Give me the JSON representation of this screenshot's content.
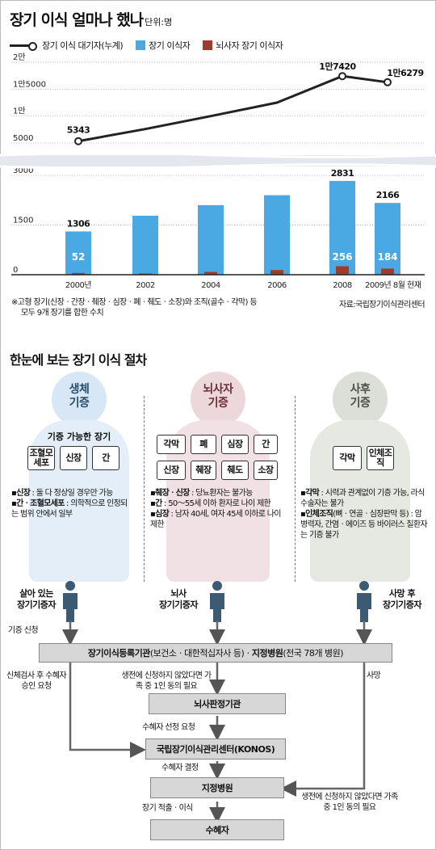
{
  "header": {
    "title": "장기 이식 얼마나 했나",
    "unit": "단위:명"
  },
  "legend": {
    "waiting": "장기 이식 대기자(누계)",
    "recipients": "장기 이식자",
    "braindead": "뇌사자 장기 이식자"
  },
  "colors": {
    "recipients": "#4aa8e2",
    "braindead": "#a23a2e",
    "line": "#222222"
  },
  "chart_data": {
    "type": "bar+line",
    "categories": [
      "2000년",
      "2002",
      "2004",
      "2006",
      "2008",
      "2009년 8월 현재"
    ],
    "y_ticks": [
      "2만",
      "1만5000",
      "1만",
      "5000",
      "3000",
      "1500",
      "0"
    ],
    "axis_note": "broken axis between 5000 and 3000",
    "series": [
      {
        "name": "장기 이식 대기자(누계)",
        "type": "line",
        "values": [
          5343,
          7600,
          10000,
          12500,
          17420,
          16279
        ]
      },
      {
        "name": "장기 이식자",
        "type": "bar",
        "values": [
          1306,
          1780,
          2100,
          2400,
          2831,
          2166
        ]
      },
      {
        "name": "뇌사자 장기 이식자",
        "type": "bar",
        "values": [
          52,
          36,
          86,
          141,
          256,
          184
        ]
      }
    ],
    "data_labels": {
      "waiting": {
        "0": "5343",
        "4": "1만7420",
        "5": "1만6279"
      },
      "recipients": {
        "0": "1306",
        "4": "2831",
        "5": "2166"
      },
      "braindead": {
        "0": "52",
        "4": "256",
        "5": "184"
      }
    },
    "grid": true
  },
  "notes": {
    "footnote1": "※고형 장기(신장ㆍ간장ㆍ췌장ㆍ심장ㆍ폐ㆍ췌도ㆍ소장)와 조직(골수ㆍ각막) 등",
    "footnote2": "모두 9개 장기를 합한 수치",
    "source": "자료:국립장기이식관리센터"
  },
  "procedure": {
    "title": "한눈에 보는 장기 이식 절차",
    "living": {
      "label1": "생체",
      "label2": "기증",
      "box_title": "기증 가능한 장기",
      "organs": [
        "조혈모세포",
        "신장",
        "간"
      ],
      "note1_key": "신장",
      "note1": " : 둘 다 정상일 경우만 가능",
      "note2_key": "간ㆍ조혈모세포",
      "note2": " : 의학적으로 인정되는 범위 안에서 일부",
      "donor": "살아 있는",
      "donor2": "장기기증자"
    },
    "braindead": {
      "label1": "뇌사자",
      "label2": "기증",
      "organs": [
        "각막",
        "폐",
        "심장",
        "간",
        "신장",
        "췌장",
        "췌도",
        "소장"
      ],
      "note1_key": "췌장ㆍ신장",
      "note1": " : 당뇨환자는 불가능",
      "note2_key": "간",
      "note2": " : 50～55세 이하 환자로 나이 제한",
      "note3_key": "심장",
      "note3": " : 남자 40세, 여자 45세 이하로 나이 제한",
      "donor": "뇌사",
      "donor2": "장기기증자"
    },
    "deceased": {
      "label1": "사후",
      "label2": "기증",
      "organs": [
        "각막",
        "인체조직"
      ],
      "note1_key": "각막",
      "note1": " : 시력과 관계없이 기증 가능, 라식 수술자는 불가",
      "note2_key": "인체조직",
      "note2": "(뼈ㆍ연골ㆍ심장판막 등) : 암병력자, 간염ㆍ에이즈 등 바이러스 질환자는 기증 불가",
      "donor": "사망 후",
      "donor2": "장기기증자"
    },
    "flow": {
      "apply": "기증 신청",
      "reg_bold1": "장기이식등록기관",
      "reg_mid": "(보건소ㆍ대한적십자사 등)ㆍ",
      "reg_bold2": "지정병원",
      "reg_end": "(전국 78개 병원)",
      "autopsy": "신체검사 후 수혜자 승인 요청",
      "family1": "생전에 신청하지 않았다면 가족 중 1인 동의 필요",
      "death": "사망",
      "judge": "뇌사판정기관",
      "select": "수혜자 선정 요청",
      "konos": "국립장기이식관리센터(KONOS)",
      "decide": "수혜자 결정",
      "hospital": "지정병원",
      "family2": "생전에 신청하지 않았다면 가족 중 1인 동의 필요",
      "transplant": "장기 적출ㆍ이식",
      "recipient": "수혜자"
    }
  }
}
